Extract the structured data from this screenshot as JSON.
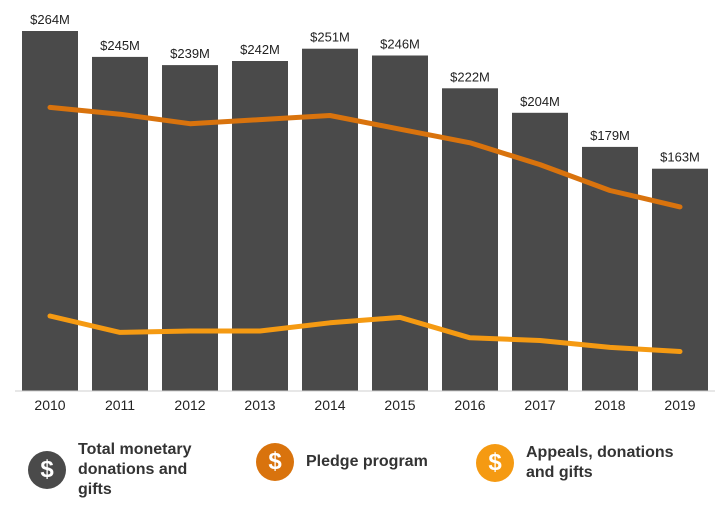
{
  "chart_data": {
    "type": "bar",
    "categories": [
      "2010",
      "2011",
      "2012",
      "2013",
      "2014",
      "2015",
      "2016",
      "2017",
      "2018",
      "2019"
    ],
    "series": [
      {
        "name": "Total monetary donations and gifts",
        "kind": "bar",
        "color": "#4a4a4a",
        "values": [
          264,
          245,
          239,
          242,
          251,
          246,
          222,
          204,
          179,
          163
        ],
        "data_labels": [
          "$264M",
          "$245M",
          "$239M",
          "$242M",
          "$251M",
          "$246M",
          "$222M",
          "$204M",
          "$179M",
          "$163M"
        ]
      },
      {
        "name": "Pledge program",
        "kind": "line",
        "color": "#d9730d",
        "values": [
          208,
          203,
          196,
          199,
          202,
          192,
          182,
          166,
          147,
          135
        ]
      },
      {
        "name": "Appeals, donations and gifts",
        "kind": "line",
        "color": "#f59a12",
        "values": [
          55,
          43,
          44,
          44,
          50,
          54,
          39,
          37,
          32,
          29
        ]
      }
    ],
    "ylim": [
      0,
      270
    ],
    "legend_position": "bottom",
    "grid": false
  },
  "legend": {
    "icon_symbol": "$",
    "items": [
      {
        "label": "Total monetary donations and gifts",
        "color": "#4a4a4a"
      },
      {
        "label": "Pledge program",
        "color": "#d9730d"
      },
      {
        "label": "Appeals, donations and gifts",
        "color": "#f59a12"
      }
    ]
  }
}
